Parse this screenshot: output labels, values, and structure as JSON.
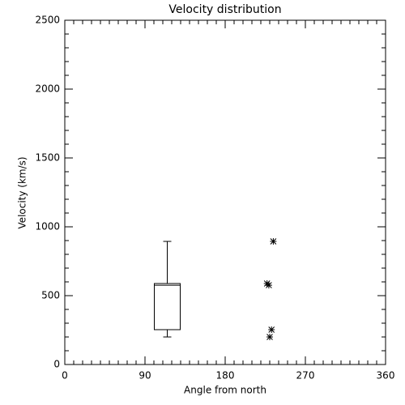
{
  "chart_data": {
    "type": "box",
    "title": "Velocity distribution",
    "xlabel": "Angle from north",
    "ylabel": "Velocity (km/s)",
    "xlim": [
      0,
      360
    ],
    "ylim": [
      0,
      2500
    ],
    "xticks": [
      0,
      90,
      180,
      270,
      360
    ],
    "yticks": [
      0,
      500,
      1000,
      1500,
      2000,
      2500
    ],
    "xminor": 10,
    "yminor": 100,
    "color": "#000000",
    "boxes": [
      {
        "x": 115,
        "min": 200,
        "q1": 253,
        "median": 576,
        "q3": 588,
        "max": 894
      }
    ],
    "points": {
      "x": [
        234,
        227,
        229,
        232,
        230
      ],
      "values": [
        894,
        588,
        576,
        253,
        200
      ]
    }
  }
}
